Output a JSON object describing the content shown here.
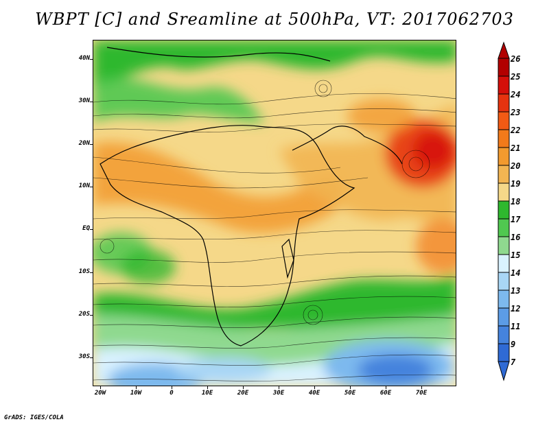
{
  "title": "WBPT [C] and Sreamline at 500hPa, VT: 2017062703",
  "credit": "GrADS: IGES/COLA",
  "lat_labels": [
    "40N",
    "30N",
    "20N",
    "10N",
    "EQ",
    "10S",
    "20S",
    "30S"
  ],
  "lon_labels": [
    "20W",
    "10W",
    "0",
    "10E",
    "20E",
    "30E",
    "40E",
    "50E",
    "60E",
    "70E"
  ],
  "colorbar": {
    "labels": [
      "26",
      "25",
      "24",
      "23",
      "22",
      "21",
      "20",
      "19",
      "18",
      "17",
      "16",
      "15",
      "14",
      "13",
      "12",
      "11",
      "9",
      "7"
    ],
    "colors": [
      "#b20000",
      "#d40f0a",
      "#e6330f",
      "#f25a14",
      "#f27a1a",
      "#f29a2e",
      "#f2b552",
      "#f5d889",
      "#2eb82e",
      "#50c850",
      "#8fd98f",
      "#d9f2ff",
      "#a9d6f5",
      "#7db9ee",
      "#5c9ce6",
      "#4583dd",
      "#2f6ad4"
    ]
  },
  "icons": {
    "map": "wbpt-streamline-map",
    "colorbar": "colorbar-triangle-ends"
  }
}
